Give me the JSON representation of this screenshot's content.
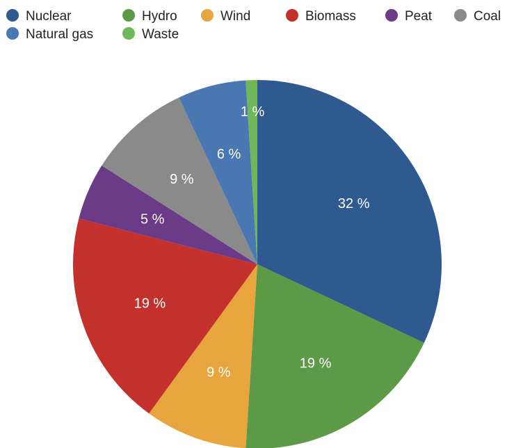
{
  "chart_data": {
    "type": "pie",
    "title": "",
    "unit_suffix": " %",
    "legend_position": "top",
    "slices": [
      {
        "name": "Nuclear",
        "value": 32,
        "label": "32 %",
        "color": "#2f5a8f"
      },
      {
        "name": "Hydro",
        "value": 19,
        "label": "19 %",
        "color": "#5d9a47"
      },
      {
        "name": "Wind",
        "value": 9,
        "label": "9 %",
        "color": "#e8a53d"
      },
      {
        "name": "Biomass",
        "value": 19,
        "label": "19 %",
        "color": "#c4302b"
      },
      {
        "name": "Peat",
        "value": 5,
        "label": "5 %",
        "color": "#6b3b87"
      },
      {
        "name": "Coal",
        "value": 9,
        "label": "9 %",
        "color": "#8a8a8a"
      },
      {
        "name": "Natural gas",
        "value": 6,
        "label": "6 %",
        "color": "#4a78b3"
      },
      {
        "name": "Waste",
        "value": 1,
        "label": "1 %",
        "color": "#6fb85a"
      }
    ]
  }
}
